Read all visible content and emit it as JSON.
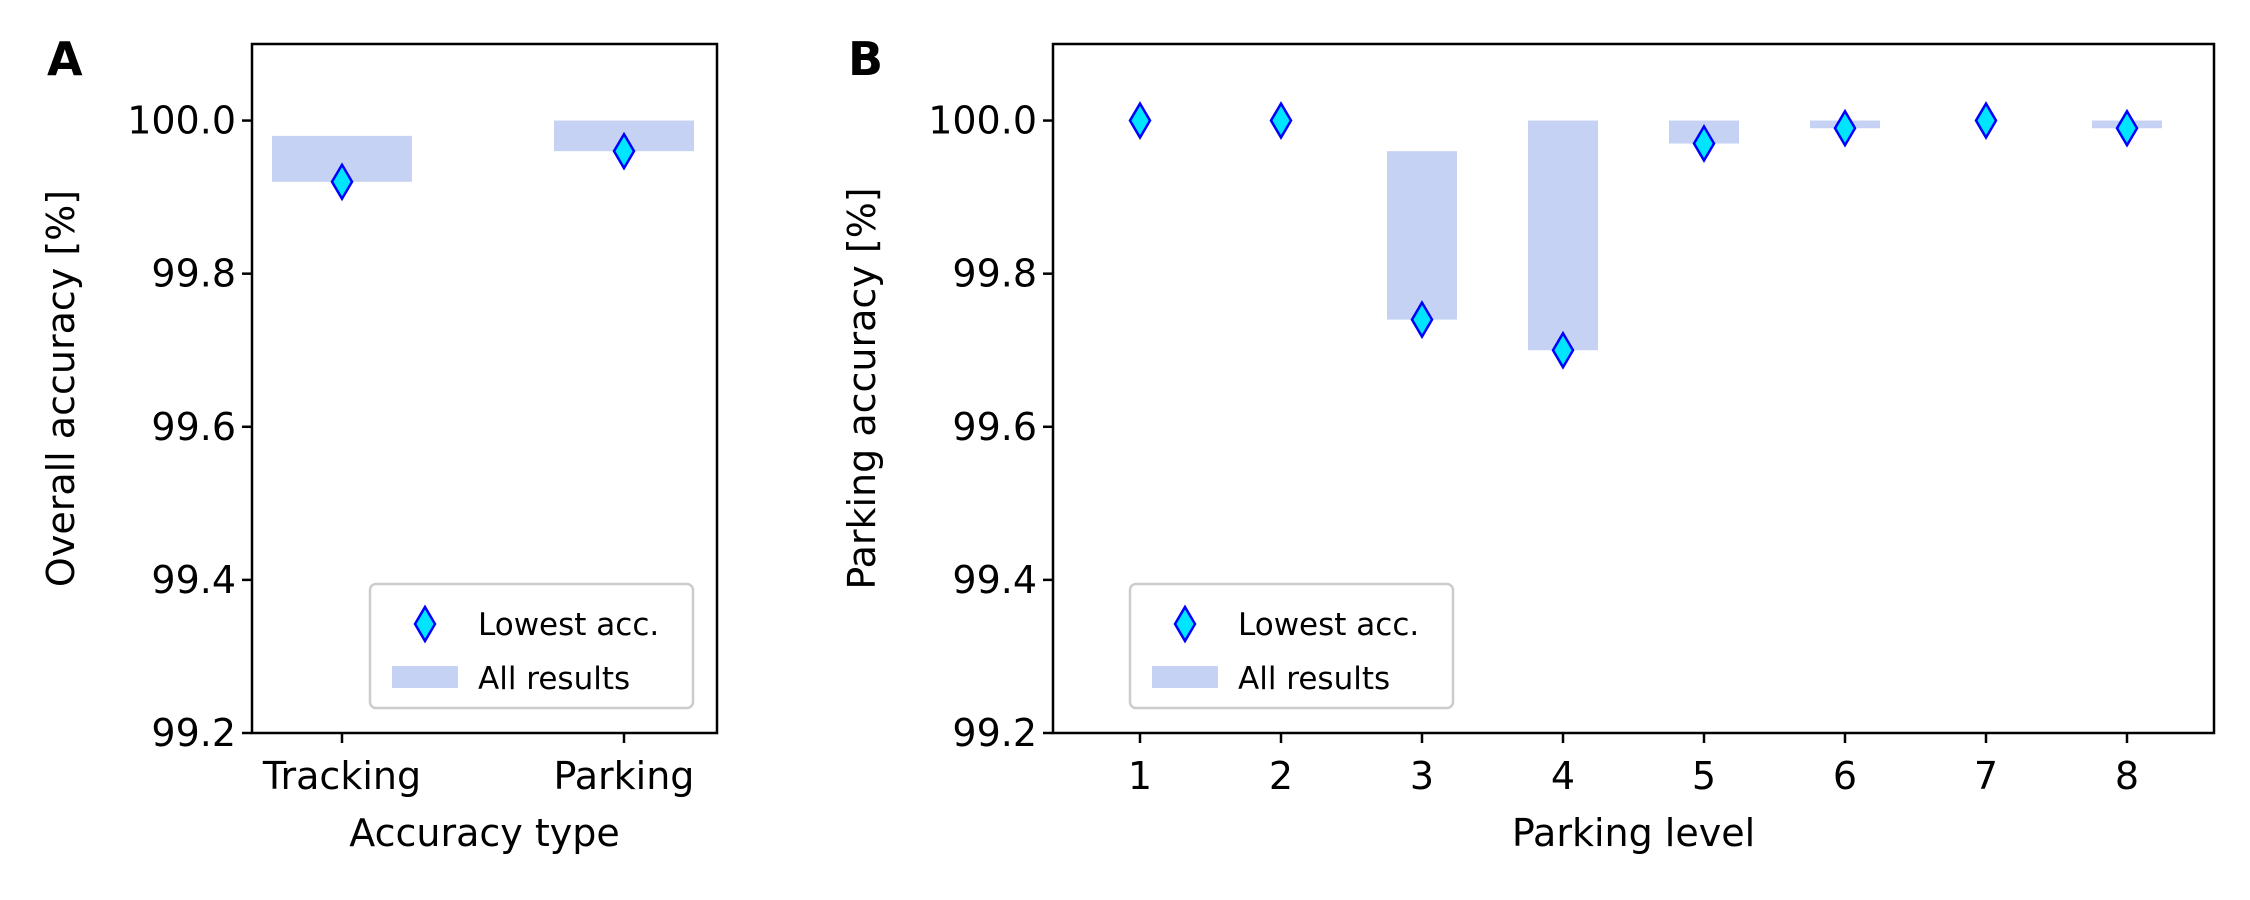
{
  "chart_data": [
    {
      "panel_label": "A",
      "type": "bar",
      "xlabel": "Accuracy type",
      "ylabel": "Overall accuracy [%]",
      "ylim": [
        99.2,
        100.1
      ],
      "yticks": [
        "99.2",
        "99.4",
        "99.6",
        "99.8",
        "100.0"
      ],
      "categories": [
        "Tracking",
        "Parking"
      ],
      "series": [
        {
          "name": "All results",
          "type": "range-bar",
          "low": [
            99.92,
            99.96
          ],
          "high": [
            99.98,
            100.0
          ],
          "color": "#c5d2f4"
        },
        {
          "name": "Lowest acc.",
          "type": "scatter",
          "marker": "thin-diamond",
          "values": [
            99.92,
            99.96
          ],
          "color": "#00e5ff",
          "edge_color": "#0000ff"
        }
      ],
      "legend": {
        "position": "lower right",
        "entries": [
          "Lowest acc.",
          "All results"
        ]
      }
    },
    {
      "panel_label": "B",
      "type": "bar",
      "xlabel": "Parking level",
      "ylabel": "Parking accuracy [%]",
      "ylim": [
        99.2,
        100.1
      ],
      "yticks": [
        "99.2",
        "99.4",
        "99.6",
        "99.8",
        "100.0"
      ],
      "categories": [
        "1",
        "2",
        "3",
        "4",
        "5",
        "6",
        "7",
        "8"
      ],
      "series": [
        {
          "name": "All results",
          "type": "range-bar",
          "low": [
            100.0,
            100.0,
            99.74,
            99.7,
            99.97,
            99.99,
            100.0,
            99.99
          ],
          "high": [
            100.0,
            100.0,
            99.96,
            100.0,
            100.0,
            100.0,
            100.0,
            100.0
          ],
          "color": "#c5d2f4"
        },
        {
          "name": "Lowest acc.",
          "type": "scatter",
          "marker": "thin-diamond",
          "values": [
            100.0,
            100.0,
            99.74,
            99.7,
            99.97,
            99.99,
            100.0,
            99.99
          ],
          "color": "#00e5ff",
          "edge_color": "#0000ff"
        }
      ],
      "legend": {
        "position": "lower left",
        "entries": [
          "Lowest acc.",
          "All results"
        ]
      }
    }
  ]
}
